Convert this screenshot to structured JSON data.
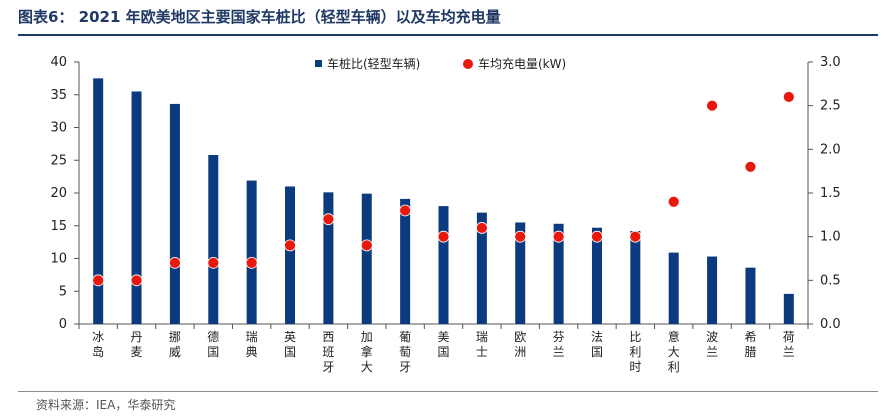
{
  "header": {
    "title": "图表6： 2021 年欧美地区主要国家车桩比（轻型车辆）以及车均充电量"
  },
  "footer": {
    "source": "资料来源：IEA，华泰研究"
  },
  "chart_data": {
    "type": "bar+scatter",
    "categories": [
      "冰岛",
      "丹麦",
      "挪威",
      "德国",
      "瑞典",
      "英国",
      "西班牙",
      "加拿大",
      "葡萄牙",
      "美国",
      "瑞士",
      "欧洲",
      "芬兰",
      "法国",
      "比利时",
      "意大利",
      "波兰",
      "希腊",
      "荷兰"
    ],
    "series": [
      {
        "name": "车桩比(轻型车辆)",
        "type": "bar",
        "axis": "left",
        "color": "#0b3a7e",
        "values": [
          37.5,
          35.5,
          33.6,
          25.8,
          21.9,
          21.0,
          20.1,
          19.9,
          19.1,
          18.0,
          17.0,
          15.5,
          15.3,
          14.7,
          14.2,
          10.9,
          10.3,
          8.6,
          4.6
        ]
      },
      {
        "name": "车均充电量(kW)",
        "type": "scatter",
        "axis": "right",
        "color": "#e8190c",
        "values": [
          0.5,
          0.5,
          0.7,
          0.7,
          0.7,
          0.9,
          1.2,
          0.9,
          1.3,
          1.0,
          1.1,
          1.0,
          1.0,
          1.0,
          1.0,
          1.4,
          2.5,
          1.8,
          2.6
        ]
      }
    ],
    "y_left": {
      "min": 0,
      "max": 40,
      "ticks": [
        "0",
        "5",
        "10",
        "15",
        "20",
        "25",
        "30",
        "35",
        "40"
      ]
    },
    "y_right": {
      "min": 0,
      "max": 3.0,
      "ticks": [
        "0.0",
        "0.5",
        "1.0",
        "1.5",
        "2.0",
        "2.5",
        "3.0"
      ]
    },
    "legend_position": "top-center",
    "grid": false
  }
}
